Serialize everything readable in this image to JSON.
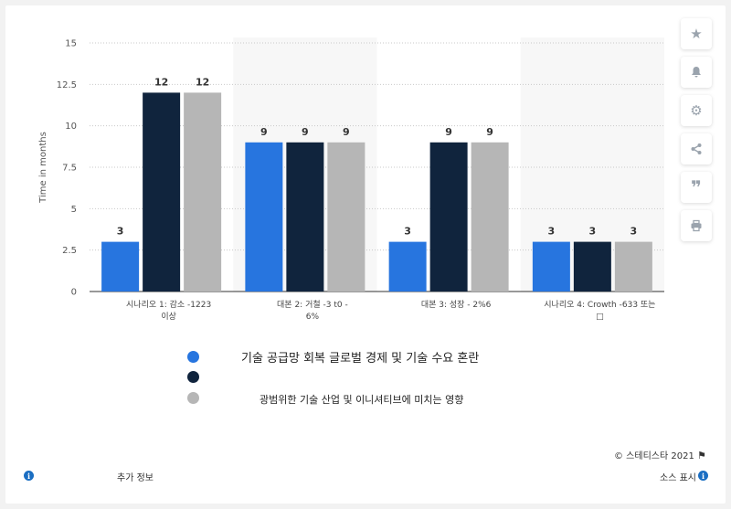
{
  "chart_data": {
    "type": "bar",
    "ylabel": "Time in months",
    "ylim": [
      0,
      15
    ],
    "yticks": [
      "0",
      "2.5",
      "5",
      "7.5",
      "10",
      "12.5",
      "15"
    ],
    "categories": [
      [
        "시나리오 1: 감소 -1223",
        "이상"
      ],
      [
        "대본 2:     거철 -3 t0 -",
        "6%"
      ],
      [
        "대본 3:     성장 - 2%6"
      ],
      [
        "시나리오 4: Crowth -633 또는",
        "□"
      ]
    ],
    "series": [
      {
        "name": "기술 공급망 회복 글로벌 경제 및 기술 수요 혼란",
        "color": "#2775df",
        "values": [
          3,
          9,
          3,
          3
        ]
      },
      {
        "name": "",
        "color": "#10243d",
        "values": [
          12,
          9,
          9,
          3
        ]
      },
      {
        "name": "광범위한 기술 산업 및 이니셔티브에 미치는 영향",
        "color": "#b6b6b6",
        "values": [
          12,
          9,
          9,
          3
        ]
      }
    ],
    "value_labels": [
      "3",
      "12",
      "12",
      "9",
      "9",
      "9",
      "3",
      "9",
      "9",
      "3",
      "3",
      "3"
    ],
    "grid": true,
    "legend_position": "bottom"
  },
  "footer": {
    "copyright": "© 스테티스타 2021",
    "more_info": "추가 정보",
    "source": "소스 표시"
  },
  "toolbar": {
    "icons": [
      "star-icon",
      "bell-icon",
      "gear-icon",
      "share-icon",
      "quote-icon",
      "print-icon"
    ]
  }
}
